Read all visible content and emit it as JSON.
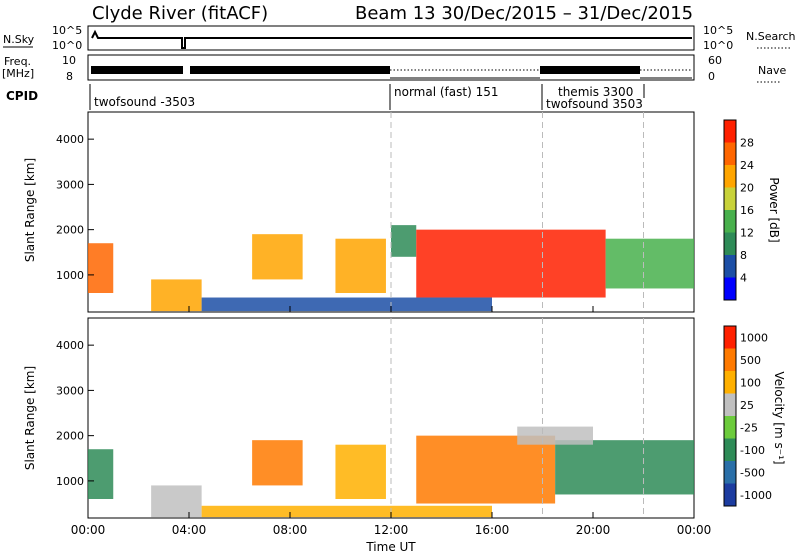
{
  "header": {
    "station": "Clyde River (fitACF)",
    "beam_date": "Beam 13  30/Dec/2015 – 31/Dec/2015"
  },
  "summary": {
    "nsky_label": "N.Sky",
    "nsearch_label": "N.Search",
    "nsky_ticks": [
      "10^5",
      "10^0"
    ],
    "nsearch_ticks": [
      "10^5",
      "10^0"
    ],
    "freq_label_1": "Freq.",
    "freq_label_2": "[MHz]",
    "freq_ticks": [
      "10",
      "8"
    ],
    "nave_label": "Nave",
    "nave_ticks": [
      "60",
      "0"
    ],
    "cpid_label": "CPID",
    "cpid_segments": [
      {
        "name": "twofsound -3503",
        "start": 0
      },
      {
        "name": "normal (fast) 151",
        "start": 12.0
      },
      {
        "name": "themis 3300",
        "start": 18.0
      },
      {
        "name": "twofsound 3503",
        "start": 18.0
      }
    ]
  },
  "colors": {
    "power": [
      "#0000ff",
      "#1c4fa6",
      "#2e8b57",
      "#48b04c",
      "#c8d23a",
      "#ffa500",
      "#ff6600",
      "#ff2000"
    ],
    "velocity": [
      "#1c3ca0",
      "#2a6fa8",
      "#2e8b57",
      "#6ccb3c",
      "#c0c0c0",
      "#ffb000",
      "#ff7a00",
      "#ff2000"
    ]
  },
  "chart_data": [
    {
      "type": "heatmap",
      "title": "",
      "ylabel": "Slant Range [km]",
      "xlabel": "",
      "ylim": [
        180,
        4600
      ],
      "yticks": [
        "1000",
        "2000",
        "3000",
        "4000"
      ],
      "xticks": [
        "00:00",
        "04:00",
        "08:00",
        "12:00",
        "16:00",
        "20:00",
        "00:00"
      ],
      "colorbar_label": "Power [dB]",
      "colorbar_ticks": [
        "4",
        "8",
        "12",
        "16",
        "20",
        "24",
        "28"
      ],
      "regions": [
        {
          "t0": 0.0,
          "t1": 1.0,
          "r0": 600,
          "r1": 1700,
          "level": 6
        },
        {
          "t0": 2.5,
          "t1": 4.5,
          "r0": 200,
          "r1": 900,
          "level": 5
        },
        {
          "t0": 6.5,
          "t1": 8.5,
          "r0": 900,
          "r1": 1900,
          "level": 5
        },
        {
          "t0": 9.8,
          "t1": 11.8,
          "r0": 600,
          "r1": 1800,
          "level": 5
        },
        {
          "t0": 12.0,
          "t1": 13.0,
          "r0": 1400,
          "r1": 2100,
          "level": 2
        },
        {
          "t0": 13.0,
          "t1": 20.5,
          "r0": 500,
          "r1": 2000,
          "level": 7
        },
        {
          "t0": 20.5,
          "t1": 24.0,
          "r0": 700,
          "r1": 1800,
          "level": 3
        },
        {
          "t0": 4.5,
          "t1": 16.0,
          "r0": 200,
          "r1": 500,
          "level": 1
        }
      ]
    },
    {
      "type": "heatmap",
      "title": "",
      "ylabel": "Slant Range [km]",
      "xlabel": "Time UT",
      "ylim": [
        180,
        4600
      ],
      "yticks": [
        "1000",
        "2000",
        "3000",
        "4000"
      ],
      "xticks": [
        "00:00",
        "04:00",
        "08:00",
        "12:00",
        "16:00",
        "20:00",
        "00:00"
      ],
      "colorbar_label": "Velocity [m s⁻¹]",
      "colorbar_ticks": [
        "1000",
        "500",
        "100",
        "25",
        "-25",
        "-100",
        "-500",
        "-1000"
      ],
      "regions": [
        {
          "t0": 0.0,
          "t1": 1.0,
          "r0": 600,
          "r1": 1700,
          "level": 2
        },
        {
          "t0": 2.5,
          "t1": 4.5,
          "r0": 200,
          "r1": 900,
          "level": 4
        },
        {
          "t0": 6.5,
          "t1": 8.5,
          "r0": 900,
          "r1": 1900,
          "level": 6
        },
        {
          "t0": 9.8,
          "t1": 11.8,
          "r0": 600,
          "r1": 1800,
          "level": 5
        },
        {
          "t0": 13.0,
          "t1": 18.5,
          "r0": 500,
          "r1": 2000,
          "level": 6
        },
        {
          "t0": 18.5,
          "t1": 24.0,
          "r0": 700,
          "r1": 1900,
          "level": 2
        },
        {
          "t0": 17.0,
          "t1": 20.0,
          "r0": 1800,
          "r1": 2200,
          "level": 4
        },
        {
          "t0": 4.5,
          "t1": 16.0,
          "r0": 200,
          "r1": 450,
          "level": 5
        }
      ]
    }
  ]
}
